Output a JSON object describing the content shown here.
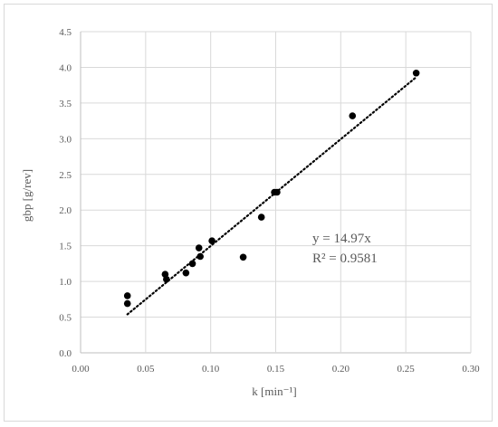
{
  "chart_data": {
    "type": "scatter",
    "xlabel": "k [min⁻¹]",
    "ylabel": "gbp [g/rev]",
    "xlim": [
      0.0,
      0.3
    ],
    "ylim": [
      0.0,
      4.5
    ],
    "x_ticks": [
      "0.00",
      "0.05",
      "0.10",
      "0.15",
      "0.20",
      "0.25",
      "0.30"
    ],
    "y_ticks": [
      "0.0",
      "0.5",
      "1.0",
      "1.5",
      "2.0",
      "2.5",
      "3.0",
      "3.5",
      "4.0",
      "4.5"
    ],
    "grid": true,
    "series": [
      {
        "points": [
          {
            "x": 0.036,
            "y": 0.8
          },
          {
            "x": 0.036,
            "y": 0.69
          },
          {
            "x": 0.065,
            "y": 1.1
          },
          {
            "x": 0.066,
            "y": 1.03
          },
          {
            "x": 0.081,
            "y": 1.12
          },
          {
            "x": 0.086,
            "y": 1.25
          },
          {
            "x": 0.091,
            "y": 1.47
          },
          {
            "x": 0.092,
            "y": 1.35
          },
          {
            "x": 0.101,
            "y": 1.57
          },
          {
            "x": 0.125,
            "y": 1.34
          },
          {
            "x": 0.139,
            "y": 1.9
          },
          {
            "x": 0.149,
            "y": 2.25
          },
          {
            "x": 0.151,
            "y": 2.25
          },
          {
            "x": 0.209,
            "y": 3.32
          },
          {
            "x": 0.258,
            "y": 3.92
          }
        ],
        "color": "#000000"
      }
    ],
    "trendline": {
      "slope": 14.97,
      "x_range": [
        0.036,
        0.258
      ],
      "style": "dotted",
      "color": "#000000"
    },
    "annotations": [
      "y = 14.97x",
      "R² = 0.9581"
    ]
  }
}
